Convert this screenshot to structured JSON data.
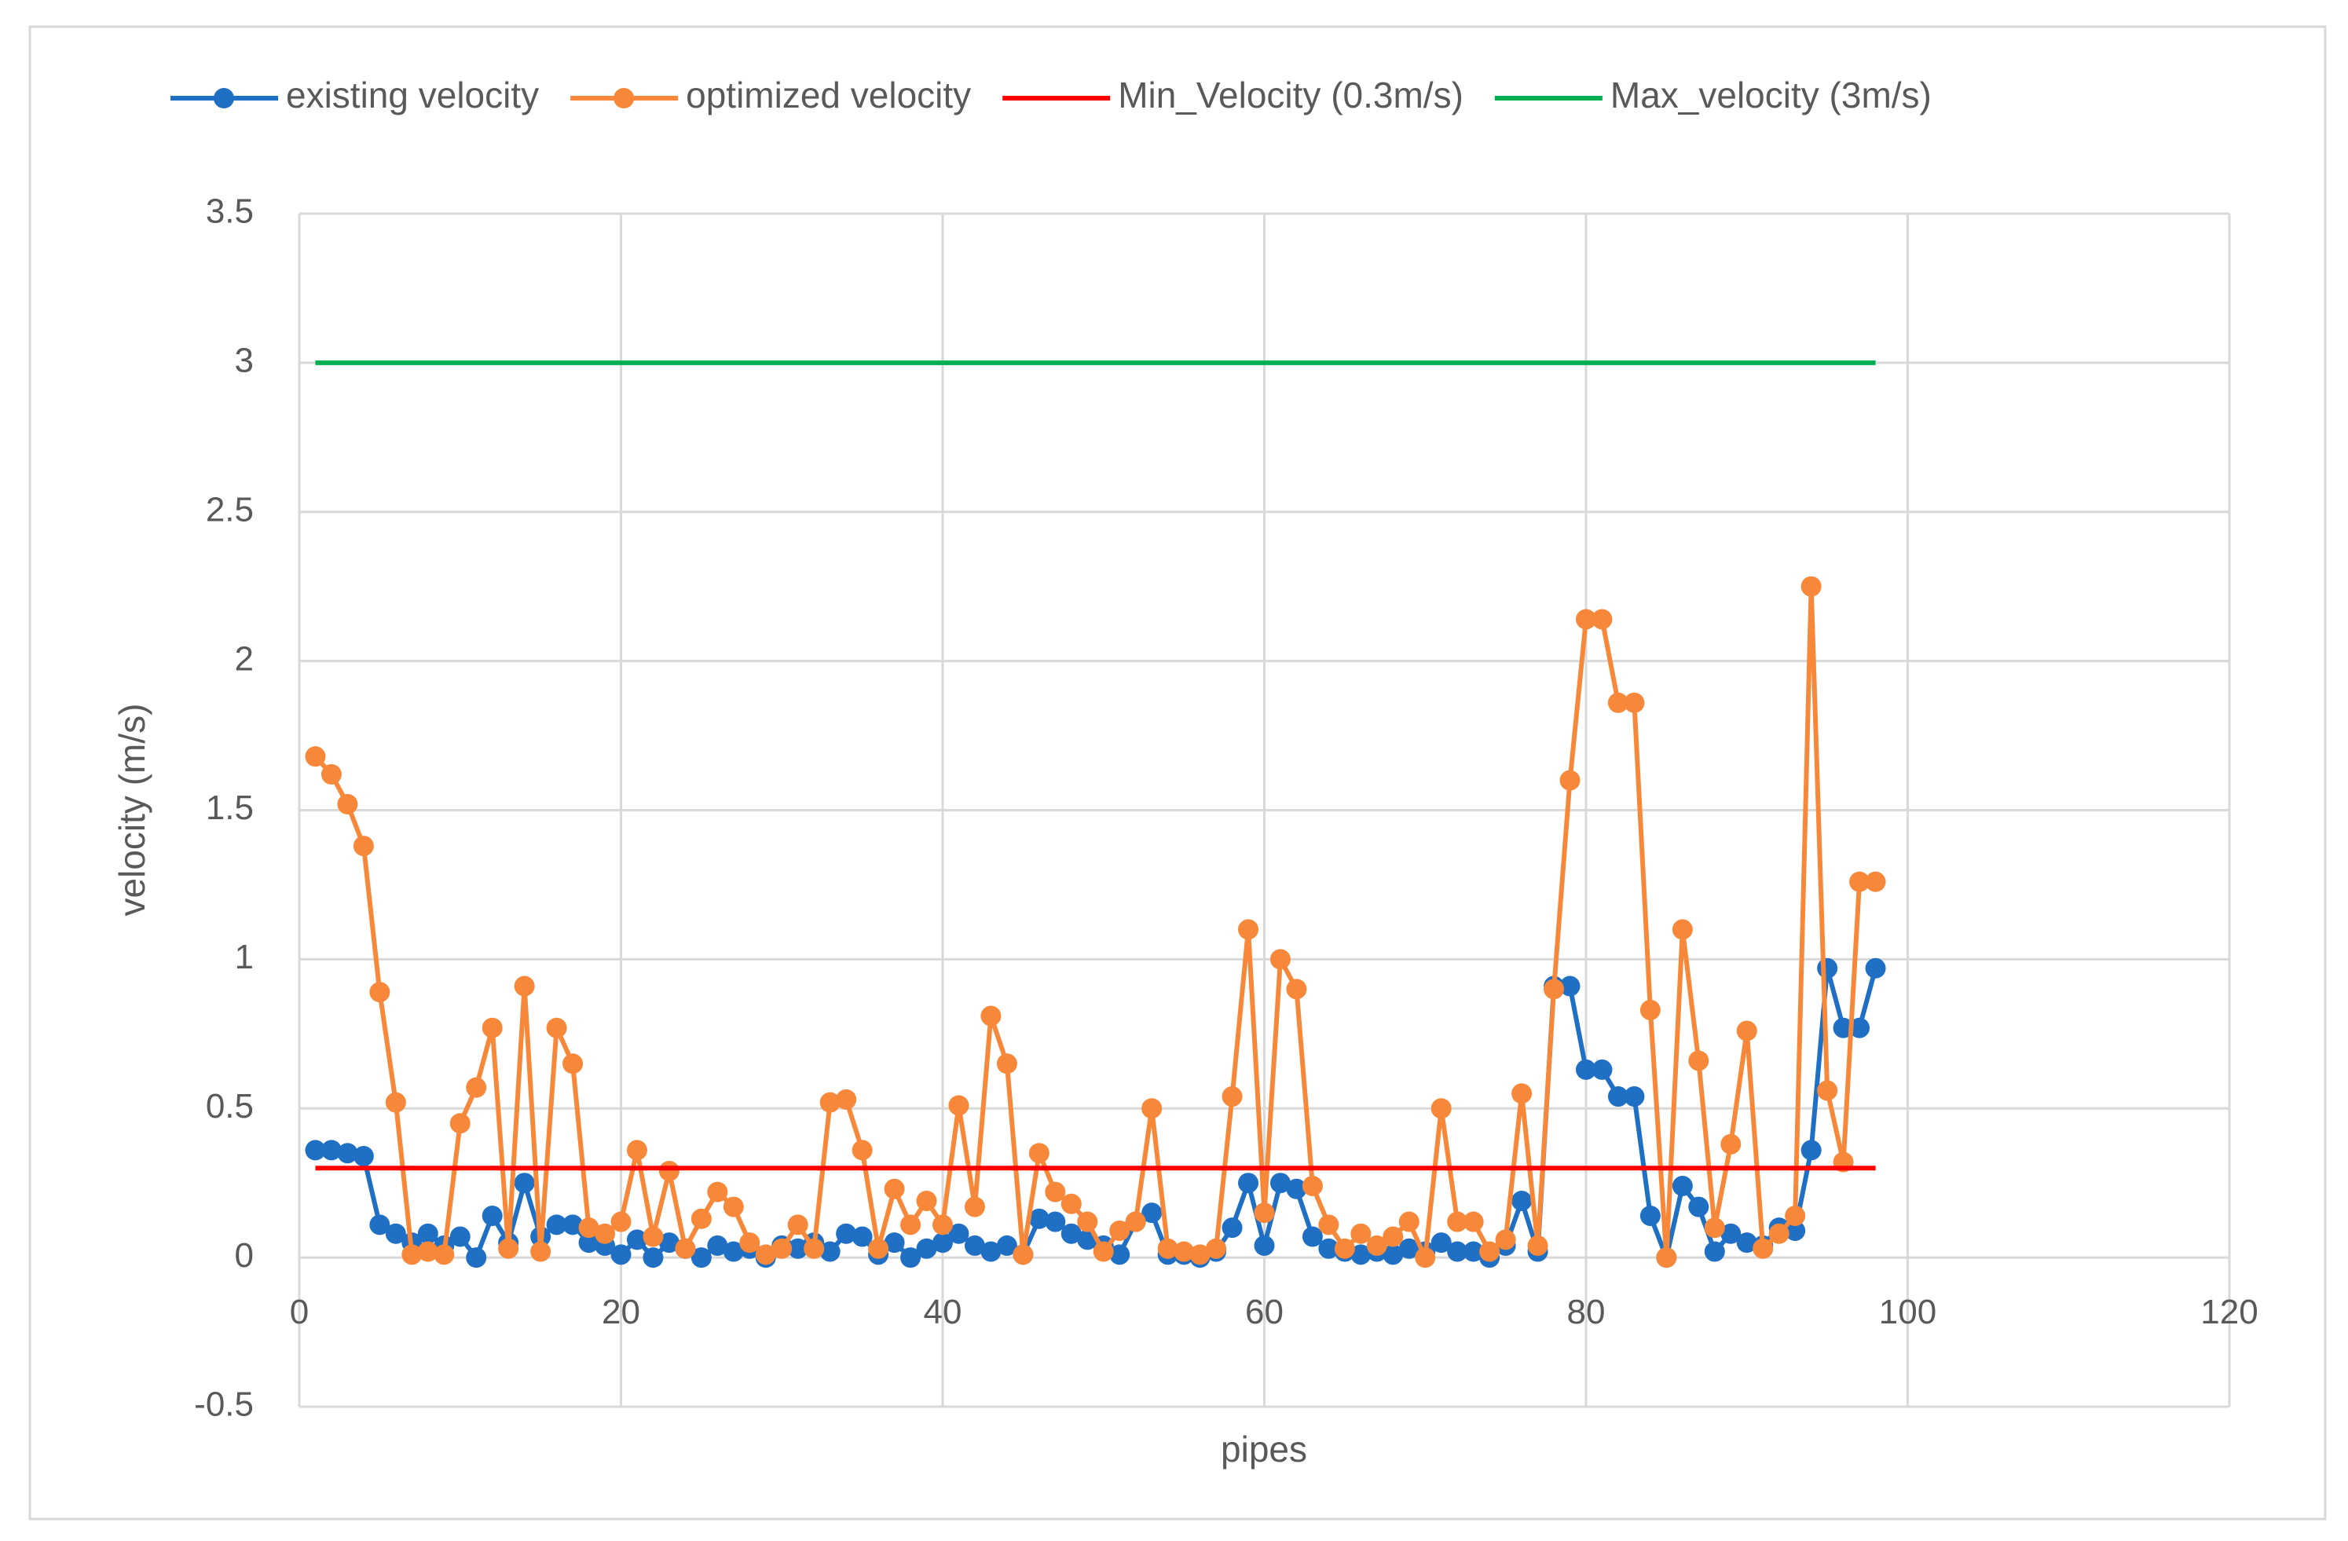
{
  "chart_data": {
    "type": "line",
    "xlabel": "pipes",
    "ylabel": "velocity (m/s)",
    "xlim": [
      0,
      120
    ],
    "xticks": [
      0,
      20,
      40,
      60,
      80,
      100,
      120
    ],
    "ylim": [
      -0.5,
      3.5
    ],
    "yticks": [
      -0.5,
      0,
      0.5,
      1,
      1.5,
      2,
      2.5,
      3,
      3.5
    ],
    "grid": true,
    "legend": "top",
    "series": [
      {
        "name": "existing velocity",
        "color": "#1f6fc5",
        "markers": true,
        "x": [
          1,
          2,
          3,
          4,
          5,
          6,
          7,
          8,
          9,
          10,
          11,
          12,
          13,
          14,
          15,
          16,
          17,
          18,
          19,
          20,
          21,
          22,
          23,
          24,
          25,
          26,
          27,
          28,
          29,
          30,
          31,
          32,
          33,
          34,
          35,
          36,
          37,
          38,
          39,
          40,
          41,
          42,
          43,
          44,
          45,
          46,
          47,
          48,
          49,
          50,
          51,
          52,
          53,
          54,
          55,
          56,
          57,
          58,
          59,
          60,
          61,
          62,
          63,
          64,
          65,
          66,
          67,
          68,
          69,
          70,
          71,
          72,
          73,
          74,
          75,
          76,
          77,
          78,
          79,
          80,
          81,
          82,
          83,
          84,
          85,
          86,
          87,
          88,
          89,
          90,
          91,
          92,
          93,
          94,
          95,
          96,
          97,
          98
        ],
        "values": [
          0.36,
          0.36,
          0.35,
          0.34,
          0.11,
          0.08,
          0.05,
          0.08,
          0.04,
          0.07,
          0.0,
          0.14,
          0.05,
          0.25,
          0.07,
          0.11,
          0.11,
          0.05,
          0.04,
          0.01,
          0.06,
          0.0,
          0.05,
          0.03,
          0.0,
          0.04,
          0.02,
          0.03,
          0.0,
          0.04,
          0.03,
          0.05,
          0.02,
          0.08,
          0.07,
          0.01,
          0.05,
          0.0,
          0.03,
          0.05,
          0.08,
          0.04,
          0.02,
          0.04,
          0.01,
          0.13,
          0.12,
          0.08,
          0.06,
          0.04,
          0.01,
          0.12,
          0.15,
          0.01,
          0.01,
          0.0,
          0.02,
          0.1,
          0.25,
          0.04,
          0.25,
          0.23,
          0.07,
          0.03,
          0.02,
          0.01,
          0.02,
          0.01,
          0.03,
          0.02,
          0.05,
          0.02,
          0.02,
          0.0,
          0.04,
          0.19,
          0.02,
          0.91,
          0.91,
          0.63,
          0.63,
          0.54,
          0.54,
          0.14,
          0.0,
          0.24,
          0.17,
          0.02,
          0.08,
          0.05,
          0.04,
          0.1,
          0.09,
          0.36,
          0.97,
          0.77,
          0.77,
          0.97
        ]
      },
      {
        "name": "optimized velocity",
        "color": "#f7883a",
        "markers": true,
        "x": [
          1,
          2,
          3,
          4,
          5,
          6,
          7,
          8,
          9,
          10,
          11,
          12,
          13,
          14,
          15,
          16,
          17,
          18,
          19,
          20,
          21,
          22,
          23,
          24,
          25,
          26,
          27,
          28,
          29,
          30,
          31,
          32,
          33,
          34,
          35,
          36,
          37,
          38,
          39,
          40,
          41,
          42,
          43,
          44,
          45,
          46,
          47,
          48,
          49,
          50,
          51,
          52,
          53,
          54,
          55,
          56,
          57,
          58,
          59,
          60,
          61,
          62,
          63,
          64,
          65,
          66,
          67,
          68,
          69,
          70,
          71,
          72,
          73,
          74,
          75,
          76,
          77,
          78,
          79,
          80,
          81,
          82,
          83,
          84,
          85,
          86,
          87,
          88,
          89,
          90,
          91,
          92,
          93,
          94,
          95,
          96,
          97,
          98
        ],
        "values": [
          1.68,
          1.62,
          1.52,
          1.38,
          0.89,
          0.52,
          0.01,
          0.02,
          0.01,
          0.45,
          0.57,
          0.77,
          0.03,
          0.91,
          0.02,
          0.77,
          0.65,
          0.1,
          0.08,
          0.12,
          0.36,
          0.07,
          0.29,
          0.03,
          0.13,
          0.22,
          0.17,
          0.05,
          0.01,
          0.03,
          0.11,
          0.03,
          0.52,
          0.53,
          0.36,
          0.03,
          0.23,
          0.11,
          0.19,
          0.11,
          0.51,
          0.17,
          0.81,
          0.65,
          0.01,
          0.35,
          0.22,
          0.18,
          0.12,
          0.02,
          0.09,
          0.12,
          0.5,
          0.03,
          0.02,
          0.01,
          0.03,
          0.54,
          1.1,
          0.15,
          1.0,
          0.9,
          0.24,
          0.11,
          0.03,
          0.08,
          0.04,
          0.07,
          0.12,
          0.0,
          0.5,
          0.12,
          0.12,
          0.02,
          0.06,
          0.55,
          0.04,
          0.9,
          1.6,
          2.14,
          2.14,
          1.86,
          1.86,
          0.83,
          0.0,
          1.1,
          0.66,
          0.1,
          0.38,
          0.76,
          0.03,
          0.08,
          0.14,
          2.25,
          0.56,
          0.32,
          1.26,
          1.26
        ]
      },
      {
        "name": "Min_Velocity (0.3m/s)",
        "color": "#ff0000",
        "markers": false,
        "x": [
          1,
          98
        ],
        "values": [
          0.3,
          0.3
        ]
      },
      {
        "name": "Max_velocity (3m/s)",
        "color": "#00b050",
        "markers": false,
        "x": [
          1,
          98
        ],
        "values": [
          3,
          3
        ]
      }
    ]
  }
}
